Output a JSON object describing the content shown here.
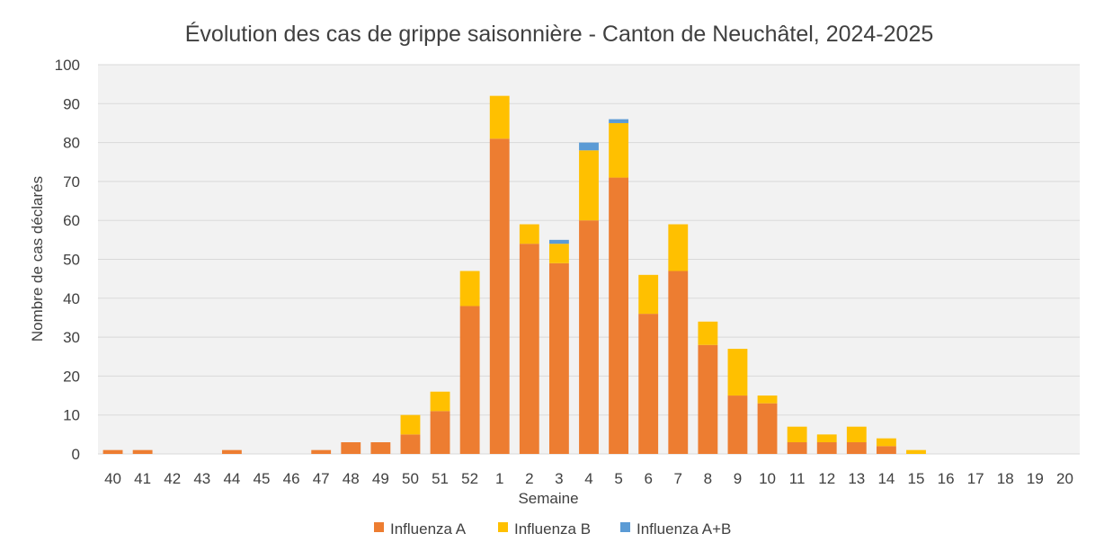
{
  "chart_data": {
    "type": "bar",
    "stacked": true,
    "title": "Évolution des cas de grippe saisonnière - Canton de Neuchâtel, 2024-2025",
    "xlabel": "Semaine",
    "ylabel": "Nombre de cas déclarés",
    "ylim": [
      0,
      100
    ],
    "yticks": [
      0,
      10,
      20,
      30,
      40,
      50,
      60,
      70,
      80,
      90,
      100
    ],
    "grid": true,
    "legend_position": "bottom",
    "categories": [
      "40",
      "41",
      "42",
      "43",
      "44",
      "45",
      "46",
      "47",
      "48",
      "49",
      "50",
      "51",
      "52",
      "1",
      "2",
      "3",
      "4",
      "5",
      "6",
      "7",
      "8",
      "9",
      "10",
      "11",
      "12",
      "13",
      "14",
      "15",
      "16",
      "17",
      "18",
      "19",
      "20"
    ],
    "series": [
      {
        "name": "Influenza A",
        "color": "#ED7D31",
        "values": [
          1,
          1,
          0,
          0,
          1,
          0,
          0,
          1,
          3,
          3,
          5,
          11,
          38,
          81,
          54,
          49,
          60,
          71,
          36,
          47,
          28,
          15,
          13,
          3,
          3,
          3,
          2,
          0,
          0,
          0,
          0,
          0,
          0
        ]
      },
      {
        "name": "Influenza B",
        "color": "#FFC000",
        "values": [
          0,
          0,
          0,
          0,
          0,
          0,
          0,
          0,
          0,
          0,
          5,
          5,
          9,
          11,
          5,
          5,
          18,
          14,
          10,
          12,
          6,
          12,
          2,
          4,
          2,
          4,
          2,
          1,
          0,
          0,
          0,
          0,
          0
        ]
      },
      {
        "name": "Influenza A+B",
        "color": "#5B9BD5",
        "values": [
          0,
          0,
          0,
          0,
          0,
          0,
          0,
          0,
          0,
          0,
          0,
          0,
          0,
          0,
          0,
          1,
          2,
          1,
          0,
          0,
          0,
          0,
          0,
          0,
          0,
          0,
          0,
          0,
          0,
          0,
          0,
          0,
          0
        ]
      }
    ]
  }
}
